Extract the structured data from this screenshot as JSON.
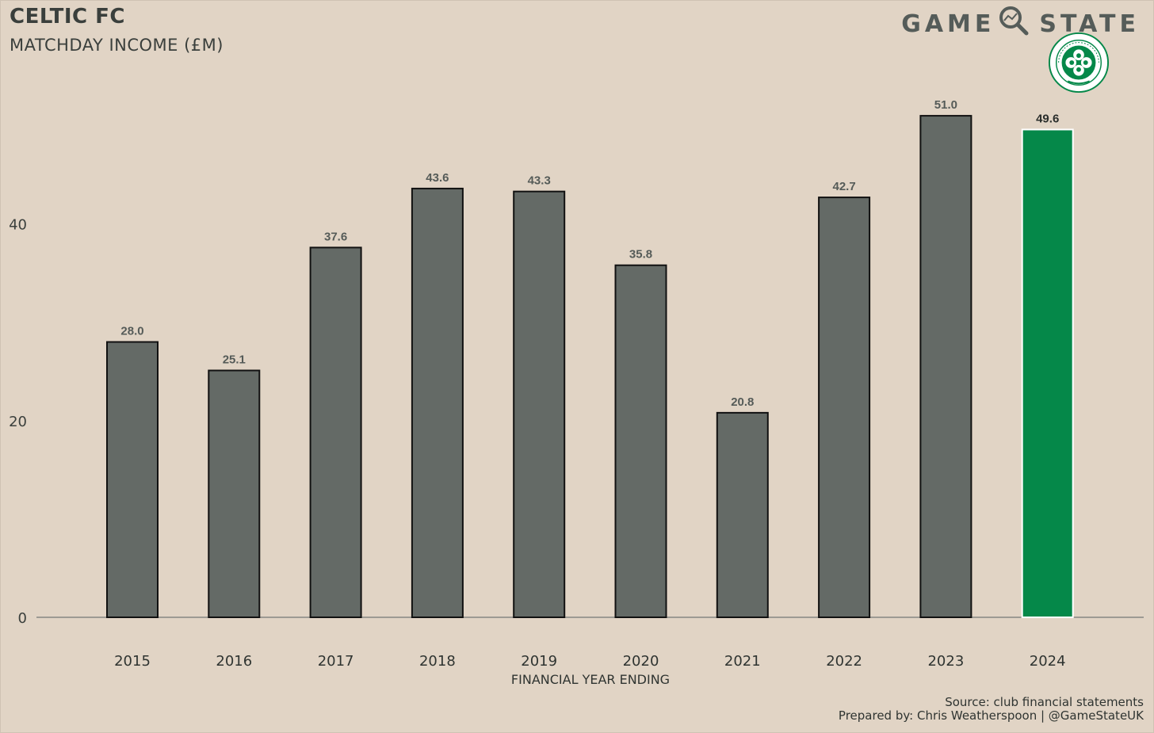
{
  "header": {
    "title": "CELTIC FC",
    "subtitle": "MATCHDAY INCOME (£M)",
    "brand_left": "GAME",
    "brand_right": "STATE"
  },
  "footer": {
    "source": "Source: club financial statements",
    "credit": "Prepared by: Chris Weatherspoon | @GameStateUK"
  },
  "colors": {
    "background": "#e1d4c5",
    "bar": "#646a66",
    "highlight": "#058849",
    "text": "#3a3f3c"
  },
  "crest": {
    "top_text": "THE CELTIC FOOTBALL CLUB",
    "bottom_text": "1888"
  },
  "chart_data": {
    "type": "bar",
    "title": "MATCHDAY INCOME (£M)",
    "xlabel": "FINANCIAL YEAR ENDING",
    "ylabel": "",
    "categories": [
      "2015",
      "2016",
      "2017",
      "2018",
      "2019",
      "2020",
      "2021",
      "2022",
      "2023",
      "2024"
    ],
    "values": [
      28.0,
      25.1,
      37.6,
      43.6,
      43.3,
      35.8,
      20.8,
      42.7,
      51.0,
      49.6
    ],
    "labels": [
      "28.0",
      "25.1",
      "37.6",
      "43.6",
      "43.3",
      "35.8",
      "20.8",
      "42.7",
      "51.0",
      "49.6"
    ],
    "highlight_index": 9,
    "yticks": [
      0,
      20,
      40
    ],
    "ylim": [
      0,
      55
    ],
    "grid": false,
    "legend": "none"
  }
}
